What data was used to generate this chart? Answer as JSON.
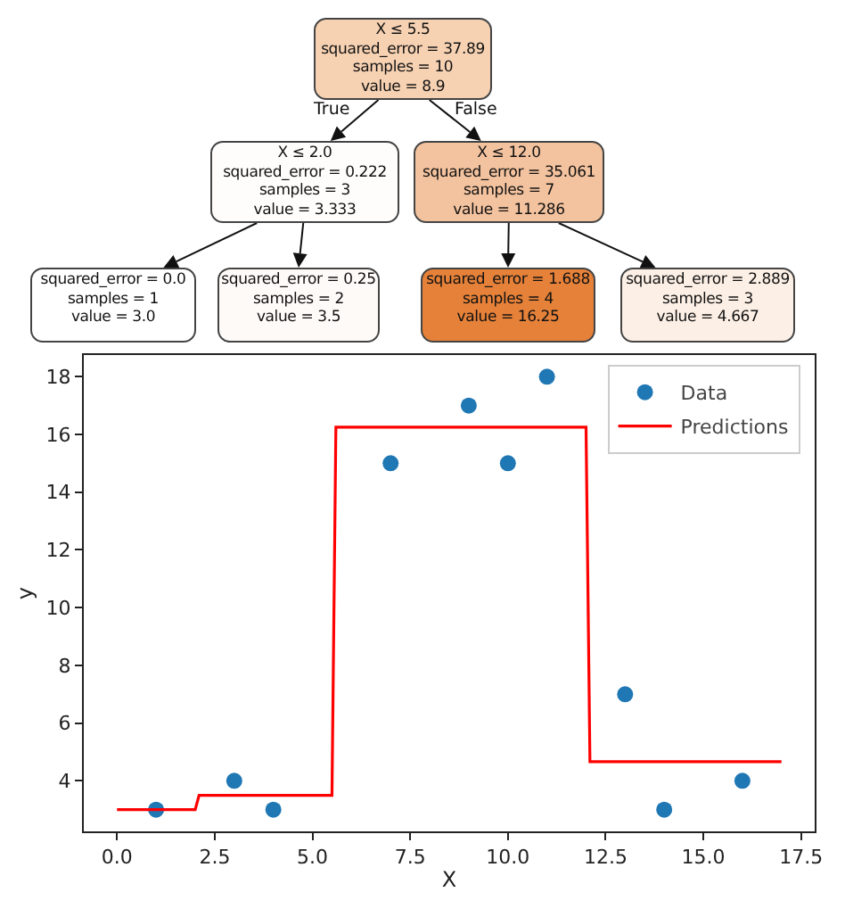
{
  "chart_data": [
    {
      "type": "other",
      "annotations": [
        "X ≤ 5.5\nsquared_error = 37.89\nsamples = 10\nvalue = 8.9",
        "X ≤ 2.0\nsquared_error = 0.222\nsamples = 3\nvalue = 3.333",
        "X ≤ 12.0\nsquared_error = 35.061\nsamples = 7\nvalue = 11.286",
        "squared_error = 0.0\nsamples = 1\nvalue = 3.0",
        "squared_error = 0.25\nsamples = 2\nvalue = 3.5",
        "squared_error = 1.688\nsamples = 4\nvalue = 16.25",
        "squared_error = 2.889\nsamples = 3\nvalue = 4.667",
        "True",
        "False"
      ]
    },
    {
      "type": "scatter",
      "xlabel": "X",
      "ylabel": "y",
      "xlim": [
        -0.85,
        17.85
      ],
      "ylim": [
        2.25,
        18.75
      ],
      "xticks": [
        {
          "value": 0,
          "label": "0.0"
        },
        {
          "value": 2.5,
          "label": "2.5"
        },
        {
          "value": 5,
          "label": "5.0"
        },
        {
          "value": 7.5,
          "label": "7.5"
        },
        {
          "value": 10,
          "label": "10.0"
        },
        {
          "value": 12.5,
          "label": "12.5"
        },
        {
          "value": 15,
          "label": "15.0"
        },
        {
          "value": 17.5,
          "label": "17.5"
        }
      ],
      "yticks": [
        4,
        6,
        8,
        10,
        12,
        14,
        16,
        18
      ],
      "grid": false,
      "legend": "top right",
      "series": [
        {
          "name": "Data",
          "type": "scatter",
          "marker": "circle",
          "color": "#1f77b4",
          "x": [
            1,
            3,
            4,
            7,
            9,
            10,
            11,
            13,
            14,
            16
          ],
          "values": [
            3,
            4,
            3,
            15,
            17,
            15,
            18,
            7,
            3,
            4
          ]
        },
        {
          "name": "Predictions",
          "type": "line",
          "line_style": "solid",
          "color": "#ff0000",
          "x": [
            0,
            2,
            2.1,
            5.5,
            5.6,
            12,
            12.1,
            17
          ],
          "values": [
            3,
            3,
            3.5,
            3.5,
            16.25,
            16.25,
            4.667,
            4.667
          ]
        }
      ]
    }
  ]
}
